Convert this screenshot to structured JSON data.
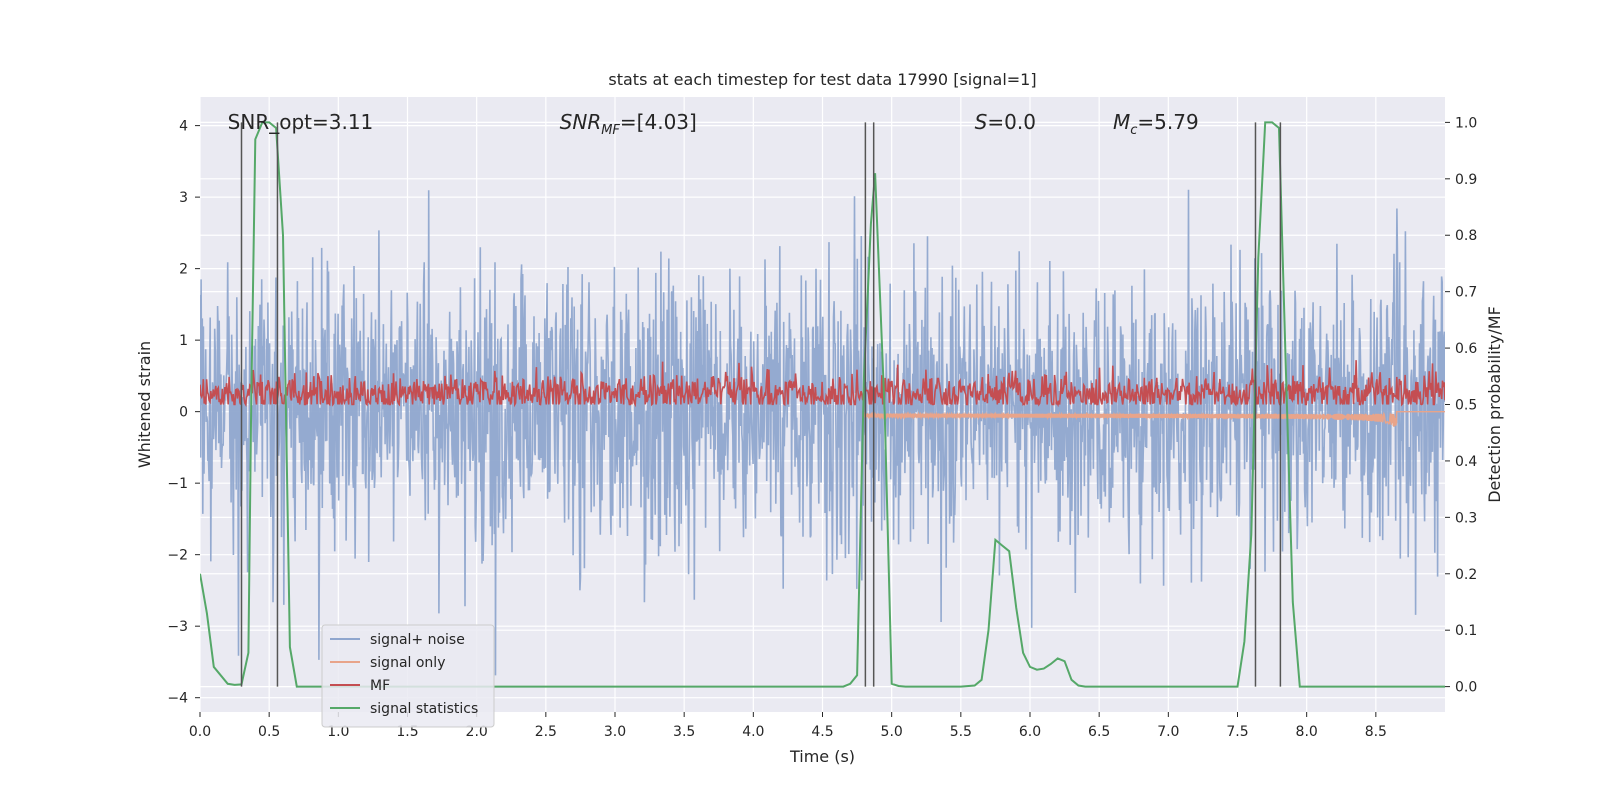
{
  "chart_data": {
    "type": "line",
    "title": "stats at each timestep for test data 17990 [signal=1]",
    "xlabel": "Time (s)",
    "ylabel_left": "Whitened strain",
    "ylabel_right": "Detection probability/MF",
    "xlim": [
      0.0,
      9.0
    ],
    "ylim_left": [
      -4.2,
      4.4
    ],
    "ylim_right": [
      -0.045,
      1.045
    ],
    "x_ticks": [
      0.0,
      0.5,
      1.0,
      1.5,
      2.0,
      2.5,
      3.0,
      3.5,
      4.0,
      4.5,
      5.0,
      5.5,
      6.0,
      6.5,
      7.0,
      7.5,
      8.0,
      8.5
    ],
    "x_tick_labels": [
      "0.0",
      "0.5",
      "1.0",
      "1.5",
      "2.0",
      "2.5",
      "3.0",
      "3.5",
      "4.0",
      "4.5",
      "5.0",
      "5.5",
      "6.0",
      "6.5",
      "7.0",
      "7.5",
      "8.0",
      "8.5"
    ],
    "y_left_ticks": [
      4,
      3,
      2,
      1,
      0,
      -1,
      -2,
      -3,
      -4
    ],
    "y_left_tick_labels": [
      "4",
      "3",
      "2",
      "1",
      "0",
      "−1",
      "−2",
      "−3",
      "−4"
    ],
    "y_right_ticks": [
      1.0,
      0.9,
      0.8,
      0.7,
      0.6,
      0.5,
      0.4,
      0.3,
      0.2,
      0.1,
      0.0
    ],
    "y_right_tick_labels": [
      "1.0",
      "0.9",
      "0.8",
      "0.7",
      "0.6",
      "0.5",
      "0.4",
      "0.3",
      "0.2",
      "0.1",
      "0.0"
    ],
    "grid": true,
    "legend_position": "lower-left",
    "annotations": [
      {
        "label": "SNR_opt=3.11",
        "x": 0.2,
        "y": 4.05,
        "italic": false
      },
      {
        "label": "SNR_MF=[4.03]",
        "x": 2.6,
        "y": 4.05,
        "italic": true
      },
      {
        "label": "S=0.0",
        "x": 5.6,
        "y": 4.05,
        "italic": true
      },
      {
        "label": "M_c=5.79",
        "x": 6.6,
        "y": 4.05,
        "italic": true
      }
    ],
    "series": [
      {
        "name": "signal+ noise",
        "color": "#8fa6ce",
        "axis": "left",
        "kind": "noise",
        "amplitude_sd": 0.95,
        "peak_max": 3.6,
        "peak_min": -3.85
      },
      {
        "name": "signal only",
        "color": "#e8a48a",
        "axis": "left",
        "kind": "chirp",
        "t_start": 4.8,
        "t_merge": 8.65,
        "min_value": -0.3
      },
      {
        "name": "MF",
        "color": "#c44e52",
        "axis": "right",
        "kind": "noise",
        "mean": 0.52,
        "band": [
          0.5,
          0.6
        ]
      },
      {
        "name": "signal statistics",
        "color": "#55a868",
        "axis": "right",
        "kind": "line",
        "x": [
          0.0,
          0.05,
          0.1,
          0.2,
          0.25,
          0.3,
          0.35,
          0.37,
          0.4,
          0.45,
          0.5,
          0.55,
          0.6,
          0.65,
          0.7,
          1.0,
          2.0,
          3.0,
          4.0,
          4.5,
          4.65,
          4.7,
          4.75,
          4.8,
          4.85,
          4.88,
          4.95,
          5.0,
          5.05,
          5.1,
          5.5,
          5.6,
          5.65,
          5.7,
          5.75,
          5.8,
          5.85,
          5.9,
          5.95,
          6.0,
          6.05,
          6.1,
          6.15,
          6.2,
          6.25,
          6.3,
          6.35,
          6.4,
          7.0,
          7.5,
          7.55,
          7.6,
          7.65,
          7.7,
          7.75,
          7.8,
          7.85,
          7.9,
          7.95,
          8.0,
          9.0
        ],
        "y": [
          0.2,
          0.13,
          0.035,
          0.005,
          0.003,
          0.004,
          0.06,
          0.5,
          0.97,
          1.0,
          1.0,
          0.99,
          0.8,
          0.07,
          0.0,
          0.0,
          0.0,
          0.0,
          0.0,
          0.0,
          0.0,
          0.005,
          0.02,
          0.55,
          0.82,
          0.91,
          0.48,
          0.005,
          0.001,
          0.0,
          0.0,
          0.002,
          0.012,
          0.1,
          0.26,
          0.25,
          0.24,
          0.14,
          0.06,
          0.035,
          0.03,
          0.032,
          0.04,
          0.05,
          0.045,
          0.012,
          0.002,
          0.0,
          0.0,
          0.0,
          0.08,
          0.27,
          0.76,
          1.0,
          1.0,
          0.99,
          0.56,
          0.15,
          0.0,
          0.0,
          0.0
        ]
      }
    ],
    "vertical_lines": [
      {
        "x": 0.3,
        "color": "#555555"
      },
      {
        "x": 0.56,
        "color": "#555555"
      },
      {
        "x": 4.81,
        "color": "#555555"
      },
      {
        "x": 4.87,
        "color": "#555555"
      },
      {
        "x": 7.63,
        "color": "#555555"
      },
      {
        "x": 7.81,
        "color": "#555555"
      }
    ]
  }
}
